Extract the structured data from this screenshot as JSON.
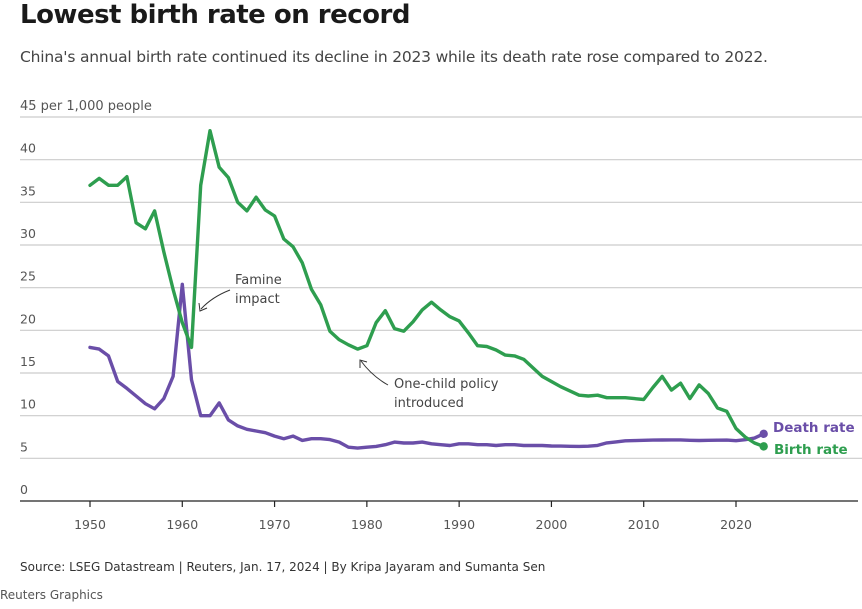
{
  "header": {
    "title": "Lowest birth rate on record",
    "subtitle": "China's annual birth rate continued its decline in 2023 while its death rate rose compared to 2022."
  },
  "footer": {
    "source": "Source: LSEG Datastream | Reuters, Jan. 17, 2024 | By Kripa Jayaram and Sumanta Sen",
    "credit": "Reuters Graphics"
  },
  "colors": {
    "birth": "#2e9e4f",
    "death": "#6a4ea8",
    "grid": "#cccccc",
    "axis": "#222222"
  },
  "chart_data": {
    "type": "line",
    "title": "Lowest birth rate on record",
    "subtitle": "China's annual birth rate continued its decline in 2023 while its death rate rose compared to 2022.",
    "xlabel": "",
    "ylabel": "per 1,000 people",
    "y_unit_label": "45 per 1,000 people",
    "ylim": [
      0,
      45
    ],
    "xlim": [
      1943,
      2031
    ],
    "yticks": [
      0,
      5,
      10,
      15,
      20,
      25,
      30,
      35,
      40,
      45
    ],
    "ytick_labels": [
      "0",
      "5",
      "10",
      "15",
      "20",
      "25",
      "30",
      "35",
      "40",
      "45 per 1,000 people"
    ],
    "xticks": [
      1950,
      1960,
      1970,
      1980,
      1990,
      2000,
      2010,
      2020
    ],
    "xtick_labels": [
      "1950",
      "1960",
      "1970",
      "1980",
      "1990",
      "2000",
      "2010",
      "2020"
    ],
    "grid": "horizontal",
    "legend": "end-of-line labels (right)",
    "x": [
      1950,
      1951,
      1952,
      1953,
      1954,
      1955,
      1956,
      1957,
      1958,
      1959,
      1960,
      1961,
      1962,
      1963,
      1964,
      1965,
      1966,
      1967,
      1968,
      1969,
      1970,
      1971,
      1972,
      1973,
      1974,
      1975,
      1976,
      1977,
      1978,
      1979,
      1980,
      1981,
      1982,
      1983,
      1984,
      1985,
      1986,
      1987,
      1988,
      1989,
      1990,
      1991,
      1992,
      1993,
      1994,
      1995,
      1996,
      1997,
      1998,
      1999,
      2000,
      2001,
      2002,
      2003,
      2004,
      2005,
      2006,
      2007,
      2008,
      2009,
      2010,
      2011,
      2012,
      2013,
      2014,
      2015,
      2016,
      2017,
      2018,
      2019,
      2020,
      2021,
      2022,
      2023
    ],
    "series": [
      {
        "name": "Birth rate",
        "label": "Birth rate",
        "values": [
          37.0,
          37.8,
          37.0,
          37.0,
          38.0,
          32.6,
          31.9,
          34.0,
          29.2,
          24.8,
          20.9,
          18.0,
          37.0,
          43.4,
          39.1,
          37.9,
          35.0,
          34.0,
          35.6,
          34.1,
          33.4,
          30.7,
          29.8,
          27.9,
          24.8,
          23.0,
          19.9,
          18.9,
          18.3,
          17.8,
          18.2,
          20.9,
          22.3,
          20.2,
          19.9,
          21.0,
          22.4,
          23.3,
          22.4,
          21.6,
          21.1,
          19.7,
          18.2,
          18.1,
          17.7,
          17.1,
          17.0,
          16.6,
          15.6,
          14.6,
          14.0,
          13.4,
          12.9,
          12.4,
          12.3,
          12.4,
          12.1,
          12.1,
          12.1,
          12.0,
          11.9,
          13.3,
          14.6,
          13.0,
          13.8,
          12.0,
          13.6,
          12.6,
          10.9,
          10.5,
          8.5,
          7.5,
          6.8,
          6.4
        ]
      },
      {
        "name": "Death rate",
        "label": "Death rate",
        "values": [
          18.0,
          17.8,
          17.0,
          14.0,
          13.2,
          12.3,
          11.4,
          10.8,
          12.0,
          14.6,
          25.4,
          14.2,
          10.0,
          10.0,
          11.5,
          9.5,
          8.8,
          8.4,
          8.2,
          8.0,
          7.6,
          7.3,
          7.6,
          7.1,
          7.3,
          7.3,
          7.2,
          6.9,
          6.3,
          6.2,
          6.3,
          6.4,
          6.6,
          6.9,
          6.8,
          6.8,
          6.9,
          6.7,
          6.6,
          6.5,
          6.7,
          6.7,
          6.6,
          6.6,
          6.5,
          6.6,
          6.6,
          6.5,
          6.5,
          6.5,
          6.45,
          6.43,
          6.41,
          6.4,
          6.42,
          6.51,
          6.81,
          6.93,
          7.06,
          7.08,
          7.11,
          7.14,
          7.15,
          7.16,
          7.16,
          7.11,
          7.09,
          7.11,
          7.13,
          7.14,
          7.07,
          7.18,
          7.37,
          7.87
        ]
      }
    ],
    "annotations": [
      {
        "text_lines": [
          "Famine",
          "impact"
        ],
        "points_to_year": 1961,
        "points_to_value": 22
      },
      {
        "text_lines": [
          "One-child policy",
          "introduced"
        ],
        "points_to_year": 1979,
        "points_to_value": 16
      }
    ]
  }
}
